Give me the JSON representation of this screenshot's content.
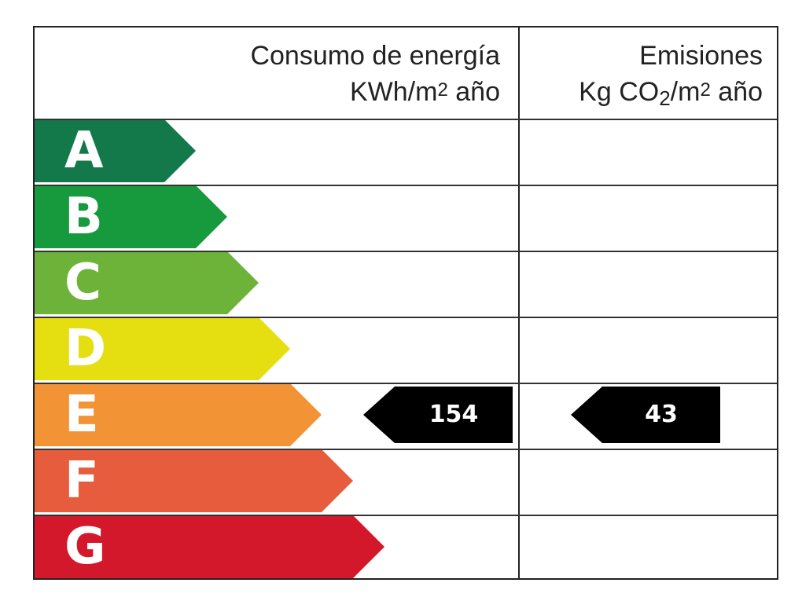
{
  "headers": {
    "energy_line1": "Consumo de energía",
    "energy_line2": "KWh/m2 año",
    "emissions_line1": "Emisiones",
    "emissions_line2": "Kg CO2/m2 año"
  },
  "classes": [
    {
      "letter": "A",
      "color": "#13794a"
    },
    {
      "letter": "B",
      "color": "#179a3e"
    },
    {
      "letter": "C",
      "color": "#6db33a"
    },
    {
      "letter": "D",
      "color": "#e5df12"
    },
    {
      "letter": "E",
      "color": "#f29336"
    },
    {
      "letter": "F",
      "color": "#e65c3c"
    },
    {
      "letter": "G",
      "color": "#d3182c"
    }
  ],
  "ratings": {
    "energy": {
      "class": "E",
      "value": "154"
    },
    "emissions": {
      "class": "E",
      "value": "43"
    }
  }
}
